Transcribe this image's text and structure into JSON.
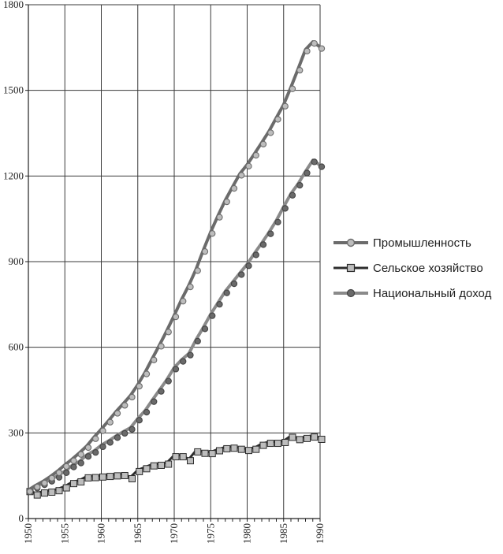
{
  "chart_data": {
    "type": "line",
    "title": "",
    "xlabel": "",
    "ylabel": "",
    "xlim": [
      1950,
      1990
    ],
    "ylim": [
      0,
      1800
    ],
    "grid": true,
    "legend_position": "right",
    "x_ticks": [
      "1950",
      "1955",
      "1960",
      "1965",
      "1970",
      "1975",
      "1980",
      "1985",
      "1990"
    ],
    "y_ticks": [
      "0",
      "300",
      "600",
      "900",
      "1200",
      "1500",
      "1800"
    ],
    "x": [
      1950,
      1951,
      1952,
      1953,
      1954,
      1955,
      1956,
      1957,
      1958,
      1959,
      1960,
      1961,
      1962,
      1963,
      1964,
      1965,
      1966,
      1967,
      1968,
      1969,
      1970,
      1971,
      1972,
      1973,
      1974,
      1975,
      1976,
      1977,
      1978,
      1979,
      1980,
      1981,
      1982,
      1983,
      1984,
      1985,
      1986,
      1987,
      1988,
      1989,
      1990
    ],
    "series": [
      {
        "name": "Промышленность",
        "color": "#6b6b6b",
        "marker": "circle",
        "values": [
          100,
          116,
          130,
          147,
          166,
          188,
          208,
          230,
          254,
          285,
          313,
          343,
          374,
          402,
          431,
          469,
          512,
          561,
          609,
          659,
          712,
          767,
          817,
          874,
          941,
          1004,
          1061,
          1115,
          1162,
          1208,
          1240,
          1278,
          1317,
          1357,
          1404,
          1450,
          1511,
          1576,
          1643,
          1670,
          1652
        ]
      },
      {
        "name": "Сельское хозяйство",
        "color": "#2c2c2c",
        "marker": "square",
        "values": [
          100,
          88,
          95,
          98,
          103,
          113,
          128,
          134,
          148,
          149,
          151,
          153,
          155,
          156,
          145,
          170,
          180,
          190,
          192,
          196,
          222,
          222,
          208,
          239,
          234,
          233,
          243,
          250,
          252,
          248,
          244,
          248,
          262,
          269,
          269,
          272,
          290,
          282,
          286,
          291,
          283
        ]
      },
      {
        "name": "Национальный доход",
        "color": "#8a8a8a",
        "marker": "circle",
        "values": [
          100,
          112,
          124,
          136,
          150,
          166,
          186,
          200,
          223,
          237,
          257,
          272,
          289,
          304,
          318,
          350,
          378,
          415,
          451,
          487,
          529,
          556,
          578,
          627,
          670,
          716,
          756,
          796,
          828,
          860,
          891,
          929,
          965,
          1003,
          1044,
          1092,
          1138,
          1173,
          1216,
          1255,
          1238
        ]
      }
    ]
  }
}
